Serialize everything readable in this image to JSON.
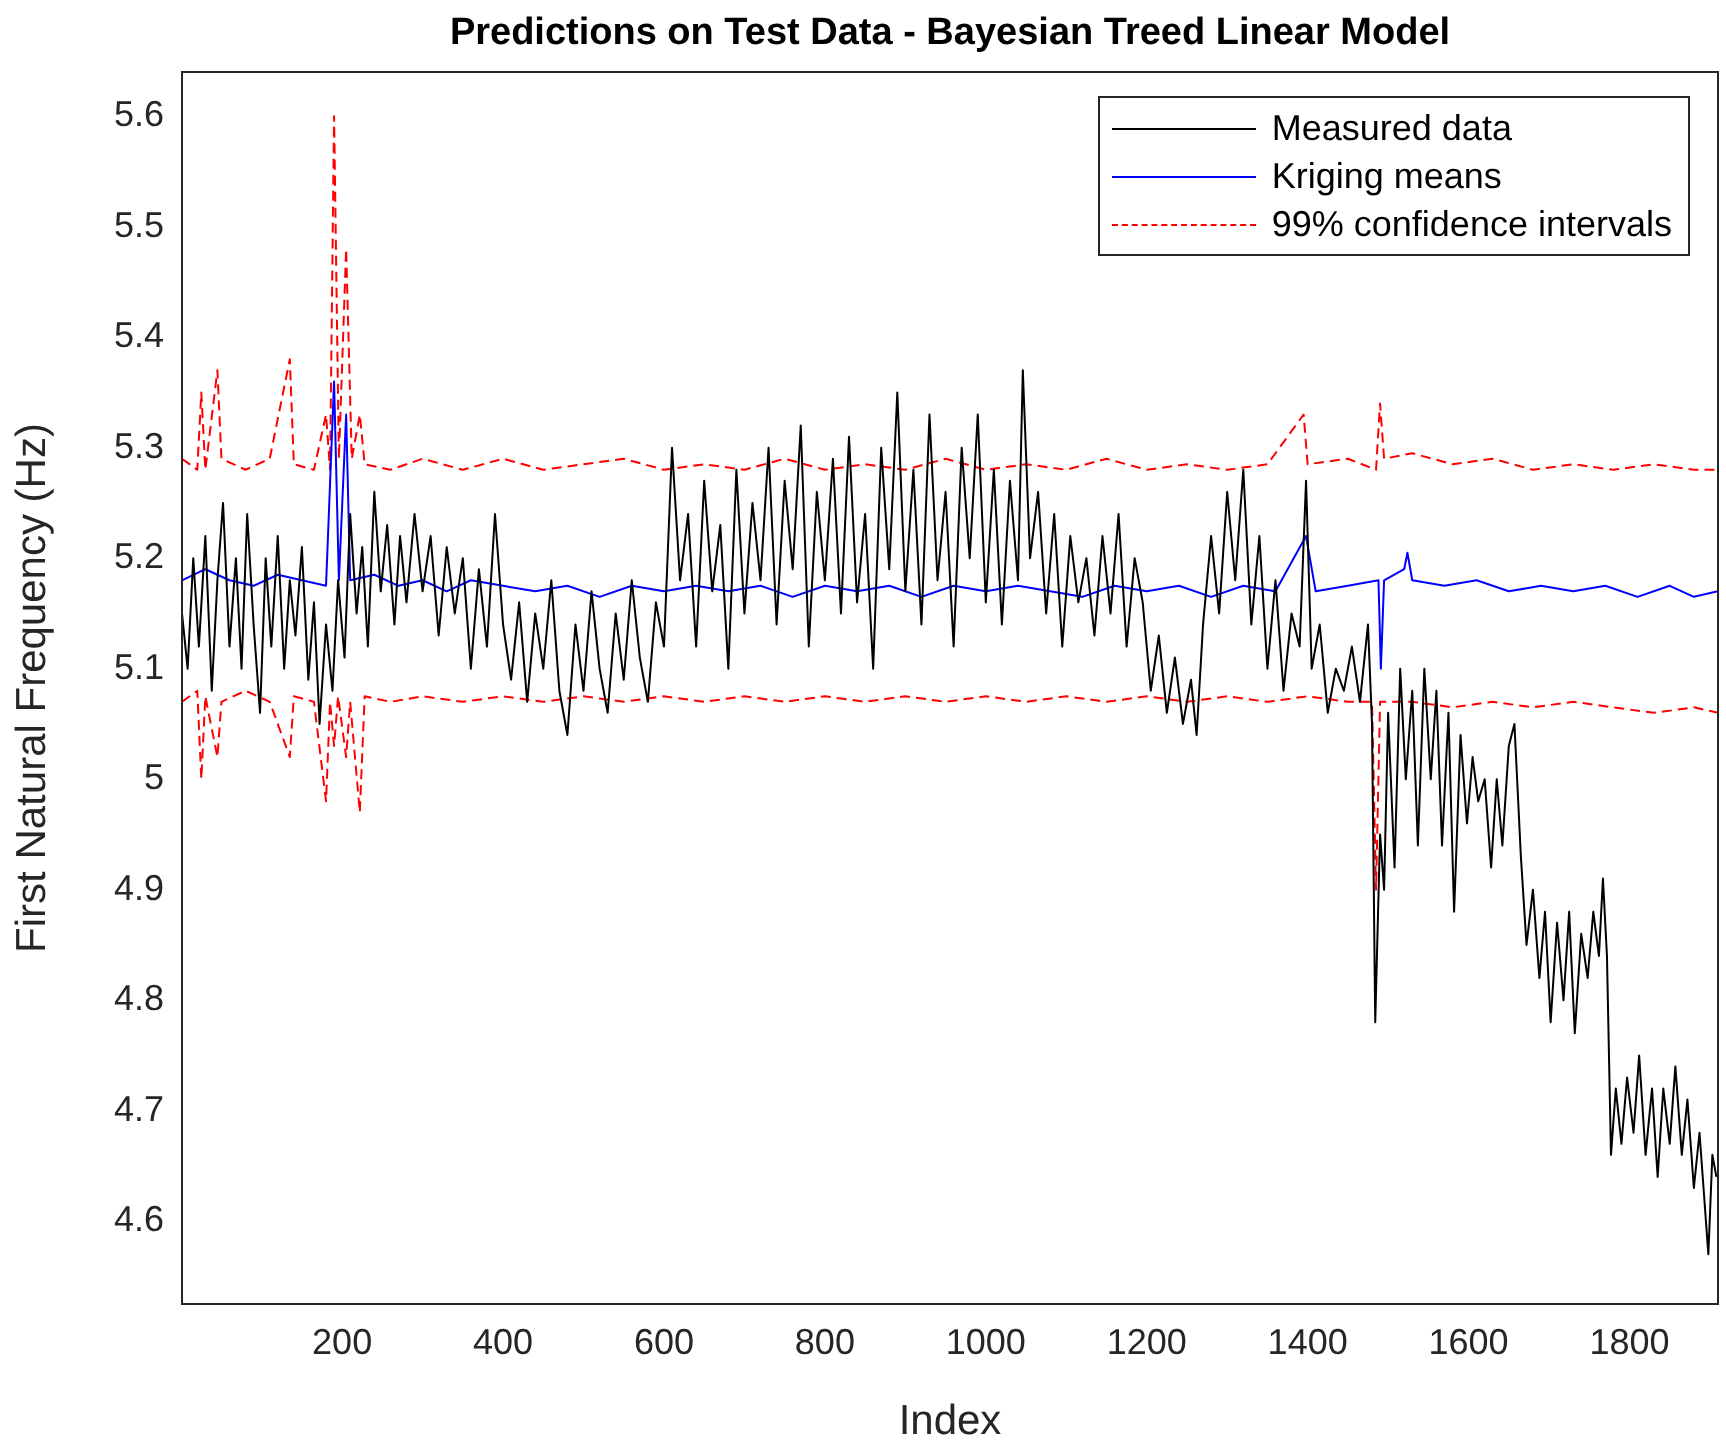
{
  "chart_data": {
    "type": "line",
    "title": "Predictions on Test Data - Bayesian Treed Linear Model",
    "xlabel": "Index",
    "ylabel": "First Natural Frequency (Hz)",
    "xlim": [
      1,
      1910
    ],
    "xticks": [
      200,
      400,
      600,
      800,
      1000,
      1200,
      1400,
      1600,
      1800
    ],
    "ylim": [
      4.525,
      5.64
    ],
    "yticks": [
      4.6,
      4.7,
      4.8,
      4.9,
      5,
      5.1,
      5.2,
      5.3,
      5.4,
      5.5,
      5.6
    ],
    "grid": false,
    "legend": "top right",
    "series": [
      {
        "name": "Measured data",
        "color": "#000000",
        "line_style": "solid",
        "x": [
          1,
          8,
          15,
          22,
          30,
          38,
          45,
          52,
          60,
          68,
          75,
          82,
          90,
          98,
          105,
          112,
          120,
          128,
          135,
          142,
          150,
          158,
          165,
          172,
          180,
          188,
          195,
          203,
          210,
          218,
          225,
          232,
          240,
          248,
          256,
          265,
          272,
          280,
          290,
          300,
          310,
          320,
          330,
          340,
          350,
          360,
          370,
          380,
          390,
          400,
          410,
          420,
          430,
          440,
          450,
          460,
          470,
          480,
          490,
          500,
          510,
          520,
          530,
          540,
          550,
          560,
          570,
          580,
          590,
          600,
          610,
          620,
          630,
          640,
          650,
          660,
          670,
          680,
          690,
          700,
          710,
          720,
          730,
          740,
          750,
          760,
          770,
          780,
          790,
          800,
          810,
          820,
          830,
          840,
          850,
          860,
          870,
          880,
          890,
          900,
          910,
          920,
          930,
          940,
          950,
          960,
          970,
          980,
          990,
          1000,
          1010,
          1020,
          1030,
          1040,
          1046,
          1055,
          1065,
          1075,
          1085,
          1095,
          1105,
          1115,
          1125,
          1135,
          1145,
          1155,
          1165,
          1175,
          1185,
          1195,
          1205,
          1215,
          1225,
          1235,
          1245,
          1255,
          1262,
          1270,
          1280,
          1290,
          1300,
          1310,
          1320,
          1330,
          1340,
          1350,
          1360,
          1370,
          1380,
          1390,
          1398,
          1405,
          1415,
          1425,
          1435,
          1445,
          1455,
          1465,
          1475,
          1480,
          1484,
          1490,
          1495,
          1500,
          1508,
          1515,
          1522,
          1530,
          1537,
          1545,
          1553,
          1560,
          1567,
          1575,
          1582,
          1590,
          1598,
          1605,
          1612,
          1620,
          1628,
          1635,
          1642,
          1650,
          1657,
          1665,
          1672,
          1680,
          1688,
          1695,
          1702,
          1710,
          1718,
          1725,
          1732,
          1740,
          1748,
          1755,
          1762,
          1767,
          1772,
          1777,
          1783,
          1790,
          1797,
          1805,
          1812,
          1820,
          1828,
          1835,
          1842,
          1850,
          1857,
          1865,
          1872,
          1880,
          1887,
          1893,
          1898,
          1903,
          1908
        ],
        "values": [
          5.15,
          5.1,
          5.2,
          5.12,
          5.22,
          5.08,
          5.18,
          5.25,
          5.12,
          5.2,
          5.1,
          5.24,
          5.14,
          5.06,
          5.2,
          5.12,
          5.22,
          5.1,
          5.18,
          5.13,
          5.21,
          5.09,
          5.16,
          5.05,
          5.14,
          5.08,
          5.18,
          5.11,
          5.24,
          5.15,
          5.21,
          5.12,
          5.26,
          5.17,
          5.23,
          5.14,
          5.22,
          5.16,
          5.24,
          5.17,
          5.22,
          5.13,
          5.21,
          5.15,
          5.2,
          5.1,
          5.19,
          5.12,
          5.24,
          5.14,
          5.09,
          5.16,
          5.07,
          5.15,
          5.1,
          5.18,
          5.08,
          5.04,
          5.14,
          5.08,
          5.17,
          5.1,
          5.06,
          5.15,
          5.09,
          5.18,
          5.11,
          5.07,
          5.16,
          5.12,
          5.3,
          5.18,
          5.24,
          5.12,
          5.27,
          5.17,
          5.23,
          5.1,
          5.28,
          5.15,
          5.25,
          5.18,
          5.3,
          5.14,
          5.27,
          5.19,
          5.32,
          5.12,
          5.26,
          5.18,
          5.29,
          5.15,
          5.31,
          5.16,
          5.24,
          5.1,
          5.3,
          5.19,
          5.35,
          5.17,
          5.28,
          5.14,
          5.33,
          5.18,
          5.26,
          5.12,
          5.3,
          5.2,
          5.33,
          5.16,
          5.28,
          5.14,
          5.27,
          5.18,
          5.37,
          5.2,
          5.26,
          5.15,
          5.24,
          5.12,
          5.22,
          5.16,
          5.2,
          5.13,
          5.22,
          5.15,
          5.24,
          5.12,
          5.2,
          5.16,
          5.08,
          5.13,
          5.06,
          5.11,
          5.05,
          5.09,
          5.04,
          5.14,
          5.22,
          5.15,
          5.26,
          5.18,
          5.28,
          5.14,
          5.22,
          5.1,
          5.18,
          5.08,
          5.15,
          5.12,
          5.27,
          5.1,
          5.14,
          5.06,
          5.1,
          5.08,
          5.12,
          5.07,
          5.14,
          5.05,
          4.78,
          4.95,
          4.9,
          5.06,
          4.92,
          5.1,
          5,
          5.08,
          4.94,
          5.1,
          5,
          5.08,
          4.94,
          5.06,
          4.88,
          5.04,
          4.96,
          5.02,
          4.98,
          5,
          4.92,
          5,
          4.94,
          5.03,
          5.05,
          4.93,
          4.85,
          4.9,
          4.82,
          4.88,
          4.78,
          4.87,
          4.8,
          4.88,
          4.77,
          4.86,
          4.82,
          4.88,
          4.84,
          4.91,
          4.84,
          4.66,
          4.72,
          4.67,
          4.73,
          4.68,
          4.75,
          4.66,
          4.72,
          4.64,
          4.72,
          4.67,
          4.74,
          4.66,
          4.71,
          4.63,
          4.68,
          4.62,
          4.57,
          4.66,
          4.64
        ]
      },
      {
        "name": "Kriging means",
        "color": "#0000ff",
        "line_style": "solid",
        "x": [
          1,
          30,
          60,
          90,
          120,
          150,
          180,
          190,
          196,
          205,
          210,
          240,
          270,
          300,
          330,
          360,
          400,
          440,
          480,
          520,
          560,
          600,
          640,
          680,
          720,
          760,
          800,
          840,
          880,
          920,
          960,
          1000,
          1040,
          1080,
          1120,
          1160,
          1200,
          1240,
          1280,
          1320,
          1360,
          1398,
          1410,
          1450,
          1488,
          1491,
          1495,
          1520,
          1524,
          1530,
          1570,
          1610,
          1650,
          1690,
          1730,
          1770,
          1810,
          1850,
          1880,
          1910
        ],
        "values": [
          5.18,
          5.19,
          5.18,
          5.175,
          5.185,
          5.18,
          5.175,
          5.36,
          5.18,
          5.33,
          5.18,
          5.185,
          5.175,
          5.18,
          5.17,
          5.18,
          5.175,
          5.17,
          5.175,
          5.165,
          5.175,
          5.17,
          5.175,
          5.17,
          5.175,
          5.165,
          5.175,
          5.17,
          5.175,
          5.165,
          5.175,
          5.17,
          5.175,
          5.17,
          5.165,
          5.175,
          5.17,
          5.175,
          5.165,
          5.175,
          5.17,
          5.22,
          5.17,
          5.175,
          5.18,
          5.1,
          5.18,
          5.19,
          5.205,
          5.18,
          5.175,
          5.18,
          5.17,
          5.175,
          5.17,
          5.175,
          5.165,
          5.175,
          5.165,
          5.17
        ]
      },
      {
        "name": "99% confidence intervals",
        "color": "#ff0000",
        "line_style": "dashed",
        "x": [
          1,
          20,
          25,
          30,
          45,
          50,
          80,
          110,
          135,
          140,
          165,
          180,
          185,
          190,
          196,
          205,
          212,
          222,
          228,
          260,
          300,
          350,
          400,
          450,
          500,
          550,
          600,
          650,
          700,
          750,
          800,
          850,
          900,
          950,
          1000,
          1050,
          1100,
          1150,
          1200,
          1250,
          1300,
          1350,
          1395,
          1400,
          1450,
          1485,
          1490,
          1495,
          1530,
          1580,
          1630,
          1680,
          1730,
          1780,
          1830,
          1880,
          1910
        ],
        "values": [
          5.29,
          5.28,
          5.35,
          5.28,
          5.37,
          5.29,
          5.28,
          5.29,
          5.38,
          5.285,
          5.28,
          5.33,
          5.28,
          5.6,
          5.29,
          5.48,
          5.29,
          5.33,
          5.285,
          5.28,
          5.29,
          5.28,
          5.29,
          5.28,
          5.285,
          5.29,
          5.28,
          5.285,
          5.28,
          5.29,
          5.28,
          5.285,
          5.28,
          5.29,
          5.28,
          5.285,
          5.28,
          5.29,
          5.28,
          5.285,
          5.28,
          5.285,
          5.33,
          5.285,
          5.29,
          5.28,
          5.34,
          5.29,
          5.295,
          5.285,
          5.29,
          5.28,
          5.285,
          5.28,
          5.285,
          5.28,
          5.28
        ]
      },
      {
        "color": "#ff0000",
        "line_style": "dashed",
        "x": [
          1,
          20,
          25,
          30,
          45,
          50,
          80,
          110,
          135,
          140,
          165,
          180,
          185,
          190,
          195,
          205,
          210,
          222,
          228,
          260,
          300,
          350,
          400,
          450,
          500,
          550,
          600,
          650,
          700,
          750,
          800,
          850,
          900,
          950,
          1000,
          1050,
          1100,
          1150,
          1200,
          1250,
          1300,
          1350,
          1400,
          1450,
          1480,
          1485,
          1490,
          1530,
          1580,
          1630,
          1680,
          1730,
          1780,
          1830,
          1880,
          1910
        ],
        "values": [
          5.07,
          5.08,
          5,
          5.075,
          5.02,
          5.07,
          5.08,
          5.07,
          5.02,
          5.075,
          5.07,
          4.98,
          5.07,
          5.03,
          5.075,
          5.02,
          5.07,
          4.97,
          5.075,
          5.07,
          5.075,
          5.07,
          5.075,
          5.07,
          5.075,
          5.07,
          5.075,
          5.07,
          5.075,
          5.07,
          5.075,
          5.07,
          5.075,
          5.07,
          5.075,
          5.07,
          5.075,
          5.07,
          5.075,
          5.07,
          5.075,
          5.07,
          5.075,
          5.07,
          5.07,
          4.9,
          5.07,
          5.07,
          5.065,
          5.07,
          5.065,
          5.07,
          5.065,
          5.06,
          5.065,
          5.06
        ]
      }
    ]
  }
}
